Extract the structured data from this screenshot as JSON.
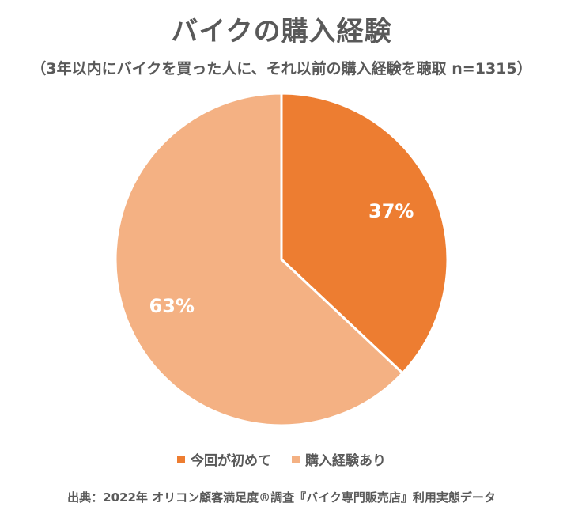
{
  "chart_data": {
    "type": "pie",
    "title": "バイクの購入経験",
    "subtitle": "（3年以内にバイクを買った人に、それ以前の購入経験を聴取 n=1315）",
    "categories": [
      "今回が初めて",
      "購入経験あり"
    ],
    "values": [
      37,
      63
    ],
    "labels": [
      "37%",
      "63%"
    ],
    "colors": [
      "#ED7D31",
      "#F4B183"
    ],
    "legend_position": "bottom",
    "start_angle": "12 o'clock",
    "direction": "clockwise"
  },
  "source": "出典：2022年 オリコン顧客満足度®調査『バイク専門販売店』利用実態データ"
}
